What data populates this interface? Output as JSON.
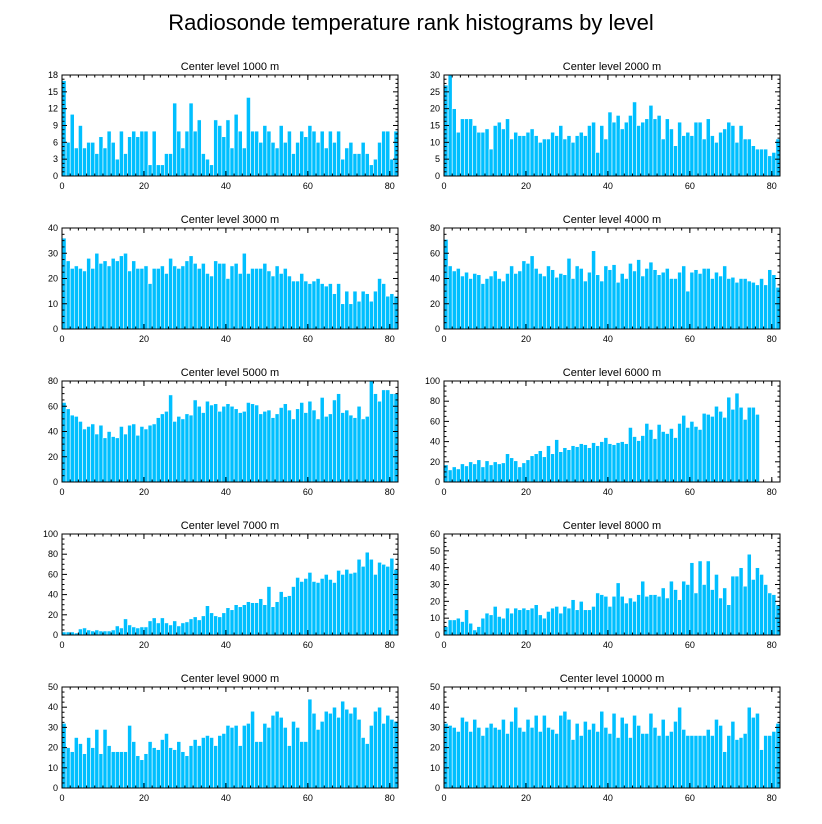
{
  "title": "Radiosonde temperature rank histograms by level",
  "bar_color": "#00bfff",
  "chart_data": [
    {
      "type": "bar",
      "title": "Center level 1000 m",
      "xlim": [
        0,
        82
      ],
      "ylim": [
        0,
        18
      ],
      "xticks": [
        0,
        20,
        40,
        60,
        80
      ],
      "yticks": [
        0,
        3,
        6,
        9,
        12,
        15,
        18
      ],
      "values": [
        17,
        6,
        11,
        5,
        9,
        5,
        6,
        6,
        4,
        7,
        5,
        8,
        6,
        3,
        8,
        4,
        7,
        8,
        7,
        8,
        8,
        2,
        8,
        2,
        2,
        4,
        4,
        13,
        8,
        5,
        8,
        13,
        8,
        10,
        4,
        3,
        2,
        10,
        9,
        7,
        10,
        5,
        11,
        8,
        5,
        14,
        8,
        8,
        6,
        9,
        8,
        6,
        5,
        9,
        6,
        8,
        4,
        6,
        8,
        7,
        9,
        8,
        6,
        8,
        5,
        8,
        6,
        8,
        3,
        5,
        6,
        4,
        4,
        6,
        4,
        2,
        3,
        6,
        8,
        8,
        3,
        8
      ]
    },
    {
      "type": "bar",
      "title": "Center level 2000 m",
      "xlim": [
        0,
        82
      ],
      "ylim": [
        0,
        30
      ],
      "xticks": [
        0,
        20,
        40,
        60,
        80
      ],
      "yticks": [
        0,
        5,
        10,
        15,
        20,
        25,
        30
      ],
      "values": [
        27,
        30,
        20,
        13,
        17,
        17,
        17,
        15,
        13,
        13,
        14,
        8,
        15,
        16,
        14,
        17,
        11,
        13,
        12,
        12,
        13,
        14,
        12,
        10,
        11,
        11,
        13,
        12,
        15,
        11,
        12,
        10,
        12,
        13,
        12,
        15,
        16,
        7,
        15,
        11,
        19,
        16,
        18,
        14,
        16,
        18,
        22,
        15,
        16,
        17,
        21,
        17,
        18,
        11,
        17,
        14,
        9,
        16,
        12,
        13,
        12,
        16,
        16,
        11,
        17,
        12,
        10,
        13,
        14,
        16,
        15,
        10,
        15,
        11,
        11,
        9,
        8,
        8,
        8,
        6,
        7,
        11
      ]
    },
    {
      "type": "bar",
      "title": "Center level 3000 m",
      "xlim": [
        0,
        82
      ],
      "ylim": [
        0,
        40
      ],
      "xticks": [
        0,
        20,
        40,
        60,
        80
      ],
      "yticks": [
        0,
        10,
        20,
        30,
        40
      ],
      "values": [
        36,
        27,
        24,
        25,
        24,
        23,
        28,
        24,
        30,
        26,
        27,
        25,
        28,
        27,
        29,
        30,
        23,
        27,
        24,
        24,
        25,
        18,
        24,
        24,
        25,
        22,
        28,
        25,
        24,
        25,
        27,
        29,
        26,
        24,
        26,
        22,
        21,
        27,
        26,
        26,
        20,
        25,
        26,
        22,
        30,
        22,
        24,
        24,
        24,
        26,
        23,
        21,
        25,
        22,
        24,
        21,
        19,
        19,
        22,
        19,
        18,
        19,
        20,
        18,
        17,
        18,
        14,
        18,
        10,
        15,
        10,
        15,
        11,
        15,
        14,
        11,
        15,
        20,
        18,
        13,
        14,
        13
      ]
    },
    {
      "type": "bar",
      "title": "Center level 4000 m",
      "xlim": [
        0,
        82
      ],
      "ylim": [
        0,
        80
      ],
      "xticks": [
        0,
        20,
        40,
        60,
        80
      ],
      "yticks": [
        0,
        20,
        40,
        60,
        80
      ],
      "values": [
        71,
        50,
        46,
        48,
        42,
        45,
        40,
        44,
        43,
        36,
        40,
        42,
        46,
        40,
        38,
        44,
        50,
        44,
        46,
        54,
        52,
        58,
        48,
        44,
        42,
        50,
        47,
        41,
        44,
        43,
        56,
        40,
        50,
        48,
        38,
        45,
        62,
        43,
        38,
        50,
        47,
        51,
        37,
        44,
        40,
        52,
        46,
        55,
        42,
        48,
        53,
        47,
        43,
        45,
        48,
        40,
        40,
        45,
        50,
        30,
        45,
        47,
        44,
        48,
        48,
        40,
        45,
        42,
        50,
        40,
        41,
        37,
        40,
        40,
        38,
        37,
        35,
        40,
        35,
        47,
        43,
        33
      ]
    },
    {
      "type": "bar",
      "title": "Center level 5000 m",
      "xlim": [
        0,
        82
      ],
      "ylim": [
        0,
        80
      ],
      "xticks": [
        0,
        20,
        40,
        60,
        80
      ],
      "yticks": [
        0,
        20,
        40,
        60,
        80
      ],
      "values": [
        63,
        58,
        53,
        52,
        48,
        42,
        44,
        46,
        38,
        45,
        35,
        40,
        36,
        35,
        44,
        38,
        45,
        46,
        37,
        44,
        42,
        45,
        46,
        51,
        54,
        56,
        69,
        48,
        52,
        50,
        54,
        53,
        65,
        60,
        55,
        64,
        61,
        62,
        56,
        60,
        62,
        60,
        58,
        55,
        56,
        63,
        62,
        61,
        54,
        56,
        57,
        51,
        54,
        59,
        62,
        57,
        50,
        58,
        63,
        55,
        64,
        57,
        50,
        67,
        52,
        54,
        65,
        70,
        55,
        57,
        53,
        51,
        60,
        50,
        52,
        80,
        70,
        64,
        73,
        73,
        70,
        70
      ]
    },
    {
      "type": "bar",
      "title": "Center level 6000 m",
      "xlim": [
        0,
        82
      ],
      "ylim": [
        0,
        100
      ],
      "xticks": [
        0,
        20,
        40,
        60,
        80
      ],
      "yticks": [
        0,
        20,
        40,
        60,
        80,
        100
      ],
      "values": [
        17,
        12,
        15,
        13,
        18,
        16,
        20,
        18,
        22,
        15,
        21,
        17,
        20,
        18,
        19,
        28,
        24,
        21,
        15,
        19,
        22,
        26,
        28,
        31,
        25,
        36,
        28,
        42,
        30,
        34,
        32,
        36,
        35,
        38,
        37,
        34,
        39,
        36,
        40,
        44,
        38,
        37,
        39,
        40,
        38,
        54,
        45,
        41,
        46,
        58,
        52,
        43,
        57,
        50,
        48,
        53,
        44,
        58,
        66,
        54,
        60,
        55,
        52,
        68,
        67,
        65,
        75,
        70,
        64,
        84,
        72,
        88,
        74,
        62,
        74,
        74,
        67
      ]
    },
    {
      "type": "bar",
      "title": "Center level 7000 m",
      "xlim": [
        0,
        82
      ],
      "ylim": [
        0,
        100
      ],
      "xticks": [
        0,
        20,
        40,
        60,
        80
      ],
      "yticks": [
        0,
        20,
        40,
        60,
        80,
        100
      ],
      "values": [
        3,
        3,
        3,
        2,
        6,
        7,
        5,
        4,
        5,
        4,
        4,
        4,
        5,
        9,
        7,
        16,
        10,
        8,
        7,
        8,
        8,
        14,
        17,
        12,
        17,
        12,
        10,
        14,
        9,
        12,
        13,
        16,
        18,
        15,
        19,
        29,
        22,
        19,
        18,
        22,
        27,
        25,
        30,
        28,
        30,
        33,
        32,
        32,
        36,
        30,
        48,
        28,
        33,
        43,
        38,
        39,
        48,
        57,
        53,
        56,
        62,
        53,
        52,
        56,
        60,
        55,
        52,
        64,
        60,
        65,
        61,
        62,
        75,
        68,
        82,
        75,
        60,
        72,
        70,
        68,
        76,
        65
      ]
    },
    {
      "type": "bar",
      "title": "Center level 8000 m",
      "xlim": [
        0,
        82
      ],
      "ylim": [
        0,
        60
      ],
      "xticks": [
        0,
        20,
        40,
        60,
        80
      ],
      "yticks": [
        0,
        10,
        20,
        30,
        40,
        50,
        60
      ],
      "values": [
        5,
        9,
        9,
        10,
        8,
        15,
        7,
        3,
        5,
        10,
        13,
        12,
        17,
        11,
        10,
        16,
        13,
        16,
        15,
        16,
        15,
        16,
        18,
        12,
        10,
        14,
        16,
        17,
        13,
        17,
        16,
        21,
        15,
        20,
        15,
        15,
        17,
        25,
        24,
        23,
        17,
        23,
        31,
        23,
        19,
        22,
        20,
        24,
        32,
        23,
        24,
        24,
        23,
        28,
        22,
        32,
        27,
        21,
        32,
        30,
        43,
        25,
        44,
        30,
        44,
        27,
        36,
        22,
        28,
        18,
        35,
        35,
        40,
        29,
        48,
        33,
        40,
        36,
        30,
        25,
        24,
        18
      ]
    },
    {
      "type": "bar",
      "title": "Center level 9000 m",
      "xlim": [
        0,
        82
      ],
      "ylim": [
        0,
        50
      ],
      "xticks": [
        0,
        20,
        40,
        60,
        80
      ],
      "yticks": [
        0,
        10,
        20,
        30,
        40,
        50
      ],
      "values": [
        32,
        20,
        18,
        25,
        22,
        17,
        25,
        20,
        29,
        17,
        29,
        21,
        18,
        18,
        18,
        18,
        31,
        23,
        16,
        14,
        17,
        23,
        20,
        19,
        24,
        27,
        20,
        19,
        23,
        18,
        16,
        21,
        24,
        21,
        25,
        26,
        25,
        21,
        26,
        27,
        31,
        30,
        31,
        21,
        31,
        32,
        38,
        23,
        23,
        32,
        30,
        36,
        38,
        35,
        30,
        21,
        33,
        30,
        23,
        23,
        44,
        37,
        29,
        33,
        38,
        37,
        40,
        35,
        43,
        39,
        37,
        40,
        34,
        25,
        22,
        31,
        38,
        40,
        32,
        36,
        34,
        33
      ]
    },
    {
      "type": "bar",
      "title": "Center level 10000 m",
      "xlim": [
        0,
        82
      ],
      "ylim": [
        0,
        50
      ],
      "xticks": [
        0,
        20,
        40,
        60,
        80
      ],
      "yticks": [
        0,
        10,
        20,
        30,
        40,
        50
      ],
      "values": [
        32,
        31,
        30,
        28,
        35,
        33,
        28,
        34,
        30,
        26,
        30,
        32,
        30,
        29,
        34,
        27,
        33,
        40,
        30,
        28,
        34,
        30,
        36,
        28,
        36,
        30,
        29,
        27,
        36,
        38,
        34,
        24,
        32,
        26,
        33,
        29,
        32,
        28,
        38,
        30,
        27,
        37,
        25,
        35,
        32,
        25,
        36,
        31,
        27,
        27,
        37,
        30,
        26,
        34,
        26,
        28,
        33,
        40,
        29,
        26,
        26,
        26,
        26,
        26,
        29,
        26,
        34,
        31,
        18,
        26,
        33,
        24,
        25,
        27,
        40,
        35,
        37,
        19,
        26,
        26,
        28,
        32
      ]
    }
  ]
}
